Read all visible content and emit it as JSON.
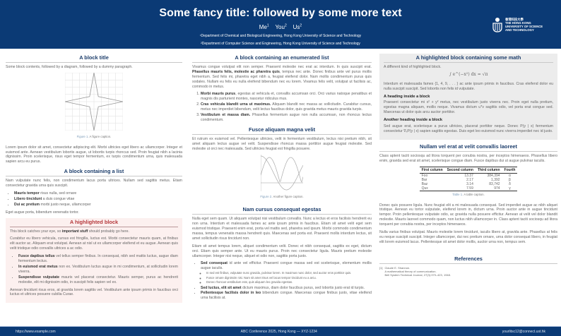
{
  "header": {
    "title": "Some fancy title: followed by some more text",
    "authors": [
      {
        "name": "Me",
        "sup": "1"
      },
      {
        "name": "You",
        "sup": "2"
      },
      {
        "name": "Us",
        "sup": "2"
      }
    ],
    "affiliations": [
      "¹Department of Chemical and Biological Engineering, Hong Kong University of Science and Technology",
      "²Department of Computer Science and Engineering, Hong Kong University of Science and Technology"
    ],
    "logo": [
      "香港科技大學",
      "THE HONG KONG",
      "UNIVERSITY OF SCIENCE",
      "AND TECHNOLOGY"
    ]
  },
  "footer": {
    "left": "https://www.example.com",
    "center": "ABC Conference 2025, Hong Kong — XYZ-1234",
    "right": "yourlitsc12@connect.ust.hk"
  },
  "col1": {
    "b1": {
      "title": "A block title",
      "intro": "Some block contents, followed by a diagram, followed by a dummy paragraph.",
      "fig_label": "Figure 1.",
      "fig_caption": "A figure caption.",
      "para": "Lorem ipsum dolor sit amet, consectetur adipiscing elit. Morbi ultricies eget libero ac ullamcorper. Integer et euismod ante. Aenean vestibulum lobortis augue, ut lobortis turpis rhoncus sed. Proin feugiat nibh a lacinia dignissim. Proin scelerisque, risus eget tempor fermentum, ex turpis condimentum urna, quis malesuada sapien arcu eu purus."
    },
    "b2": {
      "title": "A block containing a list",
      "intro": "Nam vulputate nunc felis, non condimentum lacus porta ultrices. Nullam sed sagittis metus. Etiam consectetur gravida urna quis suscipit.",
      "items": [
        {
          "b": "Mauris tempor",
          "t": " risus nulla, sed ornare"
        },
        {
          "b": "Libero tincidunt",
          "t": " a duis congue vitae"
        },
        {
          "b": "Dui ac pretium",
          "t": " morbi justo neque, ullamcorper"
        }
      ],
      "outro": "Eget augue porta, bibendum venenatis tortor."
    },
    "b3": {
      "title": "A highlighted block",
      "p1a": "This block catches your eye, so ",
      "p1b": "important stuff",
      "p1c": " should probably go here.",
      "p2": "Curabitur eu libero vehicula, cursus est fringilla, luctus est. Morbi consectetur mauris quam, at finibus elit auctor ac. Aliquam erat volutpat. Aenean at nisl ut ex ullamcorper eleifend et eu augue. Aenean quis velit tristique odio convallis ultrices a ac odio.",
      "items": [
        {
          "b": "Fusce dapibus tellus",
          "t": " vel tellus semper finibus. In consequat, nibh sed mattis luctus, augue diam fermentum lectus."
        },
        {
          "b": "In euismod erat metus",
          "t": " non ex. Vestibulum luctus augue in mi condimentum, at sollicitudin lorem viverra."
        },
        {
          "b": "Suspendisse vulputate",
          "t": " mauris vel placerat consectetur. Mauris semper, purus ac hendrerit molestie, elit mi dignissim odio, in suscipit felis sapien vel ex."
        }
      ],
      "p3": "Aenean tincidunt risus eros, at gravida lorem sagittis vel. Vestibulum ante ipsum primis in faucibus orci luctus et ultrices posuere cubilia Curae."
    }
  },
  "col2": {
    "b1": {
      "title": "A block containing an enumerated list",
      "p1a": "Vivamus congue volutpat elit non semper. Praesent molestie nec erat ac interdum. In quis suscipit erat. ",
      "p1b": "Phasellus mauris felis, molestie ac pharetra quis",
      "p1c": ", tempus nec ante. Donec finibus ante vel purus mollis fermentum. Sed felis mi, pharetra eget nibh a, feugiat eleifend dolor. Nam mollis condimentum purus quis sodales. Nullam eu felis eu nulla eleifend bibendum nec eu lorem. Vivamus felis velit, volutpat ut facilisis ac, commodo in metus.",
      "items": [
        {
          "b": "Morbi mauris purus",
          "t": ", egestas at vehicula et, convallis accumsan orci. Orci varius natoque penatibus et magnis dis parturient montes, nascetur ridiculus mus."
        },
        {
          "b": "Cras vehicula blandit urna ut maximus.",
          "t": " Aliquam blandit nec massa ac sollicitudin. Curabitur cursus, metus nec imperdiet bibendum, velit lectus faucibus dolor, quis gravida metus mauris gravida turpis."
        },
        {
          "b": "Vestibulum et massa diam.",
          "t": " Phasellus fermentum augue non nulla accumsan, non rhoncus lectus condimentum."
        }
      ]
    },
    "b2": {
      "title": "Fusce aliquam magna velit",
      "para": "Et rutrum ex euismod vel. Pellentesque ultricies, velit in fermentum vestibulum, lectus nisi pretium nibh, sit amet aliquam lectus augue vel velit. Suspendisse rhoncus massa porttitor augue feugiat molestie. Sed molestie ut orci nec malesuada. Sed ultricies feugiat est fringilla posuere.",
      "fig_label": "Figure 2.",
      "fig_caption": "Another figure caption."
    },
    "b3": {
      "title": "Nam cursus consequat egestas",
      "p1": "Nulla eget sem quam. Ut aliquam volutpat nisi vestibulum convallis. Nunc a lectus et eros facilisis hendrerit eu non urna. Interdum et malesuada fames ac ante ipsum primis in faucibus. Etiam sit amet velit eget sem euismod tristique. Praesent enim erat, porta vel mattis sed, pharetra sed ipsum. Morbi commodo condimentum massa, tempus venenatis massa hendrerit quis. Maecenas sed porta est. Praesent mollis interdum lectus, sit amet sollicitudin risus tincidunt non.",
      "p2": "Etiam sit amet tempus lorem, aliquet condimentum velit. Donec et nibh consequat, sagittis ex eget, dictum orci. Etiam quis semper ante. Ut eu mauris purus. Proin nec consectetur ligula. Mauris pretium molestie ullamcorper. Integer nisi neque, aliquet et odio non, sagittis porta justo.",
      "items": [
        {
          "b": "Sed consequat",
          "t": " id ante vel efficitur. Praesent congue massa sed est scelerisque, elementum mollis augue iaculis."
        },
        {
          "b": "Sed luctus, elit sit amet",
          "t": " dictum maximus, diam dolor faucibus purus, sed lobortis justo erat id turpis."
        },
        {
          "b": "Pellentesque facilisis dolor in leo",
          "t": " bibendum congue. Maecenas congue finibus justo, vitae eleifend urna facilisis at."
        }
      ],
      "subitems": [
        "In sed est finibus, vulputate nunc gravida, pulvinar lorem. In maximus nunc dolor, sed auctor eros porttitor quis.",
        "Fusce ornare dignissim nisi. Nam sit amet risus vel lacus tempor tincidunt eu a arcu.",
        "Donec rhoncus vestibulum erat, quis aliquam leo gravida egestas."
      ]
    }
  },
  "col3": {
    "b1": {
      "title": "A highlighted block containing some math",
      "intro": "A different kind of highlighted block.",
      "math": "∫ e^(−x²) dx = √π",
      "p1": "Interdum et malesuada fames {1, 4, 9, . . . } ac ante ipsum primis in faucibus. Cras eleifend dolor eu nulla suscipit suscipit. Sed lobortis non felis id vulputate.",
      "h1": "A heading inside a block",
      "p2": "Praesent consectetur mi x² + y² metus, nec vestibulum justo viverra nec. Proin eget nulla pretium, egestas magna aliquam, mollis neque. Vivamus dictum uᵀv sagittis odio, vel porta erat congue sed. Maecenas ut dolor quis arcu auctor porttitor.",
      "h2": "Another heading inside a block",
      "p3": "Sed augue erat, scelerisque a purus ultricies, placerat porttitor neque. Donec P(y | x) fermentum consectetur ∇ₓP(y | x) sapien sagittis egestas. Duis eget leo euismod nunc viverra imperdiet nec id justo."
    },
    "b2": {
      "title": "Nullam vel erat at velit convallis laoreet",
      "intro": "Class aptent taciti sociosqu ad litora torquent per conubia nostra, per inceptos himenaeos. Phasellus libero enim, gravida sed erat sit amet, scelerisque congue diam. Fusce dapibus dui ut augue pulvinar iaculis.",
      "table": {
        "headers": [
          "First column",
          "Second column",
          "Third column",
          "Fourth"
        ],
        "rows": [
          [
            "Foo",
            "13.37",
            "384,394",
            "α"
          ],
          [
            "Bar",
            "2.17",
            "1,392",
            "β"
          ],
          [
            "Baz",
            "3.14",
            "83,742",
            "δ"
          ],
          [
            "Qux",
            "7.59",
            "974",
            "γ"
          ]
        ]
      },
      "table_label": "Table 1.",
      "table_caption": "A table caption.",
      "p1": "Donec quis posuere ligula. Nunc feugiat elit a mi malesuada consequat. Sed imperdiet augue ac nibh aliquet tristique. Aenean eu tortor vulputate, eleifend lorem in, dictum urna. Proin auctor ante in augue tincidunt tempor. Proin pellentesque vulputate odio, ac gravida nulla posuere efficitur. Aenean at velit vel dolor blandit molestie. Mauris laoreet commodo quam, non luctus nibh ullamcorper in. Class aptent taciti sociosqu ad litora torquent per conubia nostra, per inceptos himenaeos.",
      "p2": "Nulla varius finibus volutpat. Mauris molestie lorem tincidunt, iaculis libero at, gravida ante. Phasellus at felis eu neque suscipit suscipit. Integer ullamcorper, dui nec pretium ornare, urna dolor consequat libero, in feugiat elit lorem euismod lacus. Pellentesque sit amet dolor mollis, auctor urna non, tempus sem."
    },
    "refs": {
      "title": "References",
      "items": [
        {
          "num": "[1]",
          "author": "Claude E. Shannon.",
          "title": "A mathematical theory of communication.",
          "venue": "Bell System Technical Journal, 27(3):379–423, 1948."
        }
      ]
    }
  }
}
